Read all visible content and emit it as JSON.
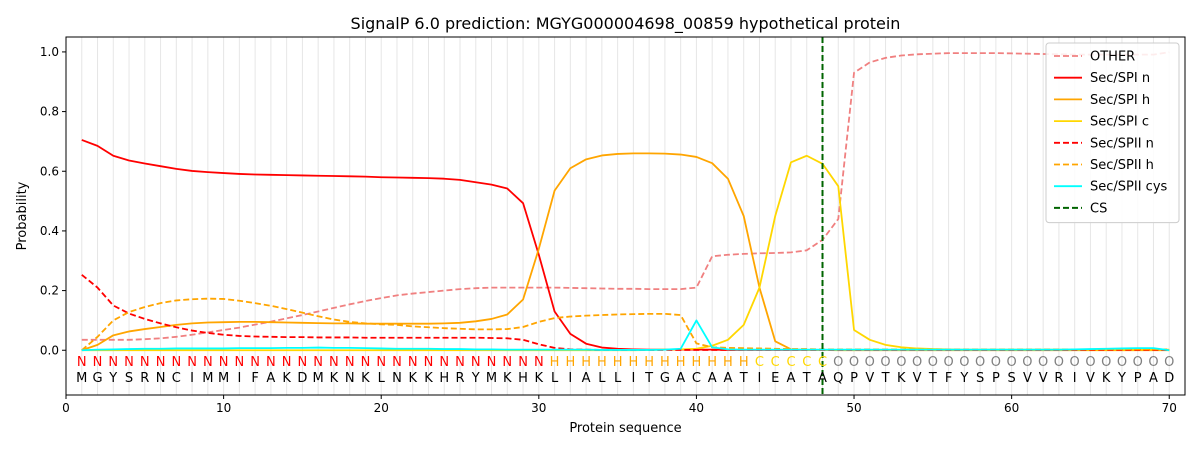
{
  "chart_data": {
    "type": "line",
    "title": "SignalP 6.0 prediction: MGYG000004698_00859 hypothetical protein",
    "xlabel": "Protein sequence",
    "ylabel": "Probability",
    "xlim": [
      0,
      71
    ],
    "ylim": [
      -0.15,
      1.05
    ],
    "x_ticks": [
      0,
      10,
      20,
      30,
      40,
      50,
      60,
      70
    ],
    "y_ticks": [
      0.0,
      0.2,
      0.4,
      0.6,
      0.8,
      1.0
    ],
    "x_tick_labels": [
      "0",
      "10",
      "20",
      "30",
      "40",
      "50",
      "60",
      "70"
    ],
    "y_tick_labels": [
      "0.0",
      "0.2",
      "0.4",
      "0.6",
      "0.8",
      "1.0"
    ],
    "legend_position": "top-right",
    "vertical_grid": true,
    "sequence": [
      "M",
      "G",
      "Y",
      "S",
      "R",
      "N",
      "C",
      "I",
      "M",
      "M",
      "I",
      "F",
      "A",
      "K",
      "D",
      "M",
      "K",
      "N",
      "K",
      "L",
      "N",
      "K",
      "K",
      "H",
      "R",
      "Y",
      "M",
      "K",
      "H",
      "K",
      "L",
      "I",
      "A",
      "L",
      "L",
      "I",
      "T",
      "G",
      "A",
      "C",
      "A",
      "A",
      "T",
      "I",
      "E",
      "A",
      "T",
      "A",
      "Q",
      "P",
      "V",
      "T",
      "K",
      "V",
      "T",
      "F",
      "Y",
      "S",
      "P",
      "S",
      "V",
      "V",
      "R",
      "I",
      "V",
      "K",
      "Y",
      "P",
      "A",
      "D"
    ],
    "labels": [
      "N",
      "N",
      "N",
      "N",
      "N",
      "N",
      "N",
      "N",
      "N",
      "N",
      "N",
      "N",
      "N",
      "N",
      "N",
      "N",
      "N",
      "N",
      "N",
      "N",
      "N",
      "N",
      "N",
      "N",
      "N",
      "N",
      "N",
      "N",
      "N",
      "N",
      "H",
      "H",
      "H",
      "H",
      "H",
      "H",
      "H",
      "H",
      "H",
      "H",
      "H",
      "H",
      "H",
      "C",
      "C",
      "C",
      "C",
      "C",
      "O",
      "O",
      "O",
      "O",
      "O",
      "O",
      "O",
      "O",
      "O",
      "O",
      "O",
      "O",
      "O",
      "O",
      "O",
      "O",
      "O",
      "O",
      "O",
      "O",
      "O",
      "O"
    ],
    "label_colors": {
      "N": "#ff0000",
      "H": "#ffa500",
      "C": "#ffd700",
      "O": "#808080"
    },
    "cs_position": 48,
    "series": [
      {
        "name": "OTHER",
        "color": "#f08080",
        "dash": "dashed",
        "values": [
          0.035,
          0.035,
          0.035,
          0.035,
          0.037,
          0.04,
          0.045,
          0.052,
          0.06,
          0.068,
          0.076,
          0.086,
          0.096,
          0.107,
          0.118,
          0.13,
          0.142,
          0.154,
          0.165,
          0.175,
          0.184,
          0.19,
          0.195,
          0.2,
          0.205,
          0.208,
          0.21,
          0.21,
          0.21,
          0.21,
          0.21,
          0.209,
          0.208,
          0.207,
          0.206,
          0.206,
          0.205,
          0.205,
          0.205,
          0.21,
          0.315,
          0.32,
          0.323,
          0.325,
          0.326,
          0.328,
          0.335,
          0.37,
          0.44,
          0.93,
          0.965,
          0.98,
          0.988,
          0.992,
          0.994,
          0.996,
          0.996,
          0.996,
          0.996,
          0.995,
          0.994,
          0.993,
          0.992,
          0.991,
          0.991,
          0.991,
          0.991,
          0.991,
          0.991,
          0.999
        ]
      },
      {
        "name": "Sec/SPI n",
        "color": "#ff0000",
        "dash": "solid",
        "values": [
          0.705,
          0.685,
          0.652,
          0.636,
          0.626,
          0.617,
          0.608,
          0.601,
          0.597,
          0.594,
          0.591,
          0.589,
          0.588,
          0.587,
          0.586,
          0.585,
          0.584,
          0.583,
          0.582,
          0.58,
          0.579,
          0.578,
          0.577,
          0.575,
          0.571,
          0.563,
          0.555,
          0.542,
          0.493,
          0.32,
          0.13,
          0.055,
          0.022,
          0.009,
          0.005,
          0.003,
          0.002,
          0.002,
          0.002,
          0.002,
          0.002,
          0.001,
          0.001,
          0.001,
          0.001,
          0.001,
          0.001,
          0.001,
          0.001,
          0.001,
          0.001,
          0.001,
          0.001,
          0.001,
          0.001,
          0.001,
          0.001,
          0.001,
          0.001,
          0.001,
          0.001,
          0.001,
          0.001,
          0.001,
          0.001,
          0.001,
          0.001,
          0.001,
          0.001,
          0.001
        ]
      },
      {
        "name": "Sec/SPI h",
        "color": "#ffa500",
        "dash": "solid",
        "values": [
          0.0,
          0.018,
          0.05,
          0.063,
          0.071,
          0.078,
          0.085,
          0.09,
          0.093,
          0.094,
          0.095,
          0.095,
          0.094,
          0.093,
          0.092,
          0.091,
          0.09,
          0.09,
          0.089,
          0.089,
          0.089,
          0.089,
          0.089,
          0.09,
          0.092,
          0.097,
          0.105,
          0.12,
          0.17,
          0.34,
          0.535,
          0.61,
          0.64,
          0.653,
          0.658,
          0.66,
          0.66,
          0.659,
          0.656,
          0.648,
          0.627,
          0.575,
          0.45,
          0.21,
          0.03,
          0.003,
          0.001,
          0.001,
          0.0,
          0.0,
          0.0,
          0.0,
          0.0,
          0.0,
          0.0,
          0.0,
          0.0,
          0.0,
          0.0,
          0.0,
          0.0,
          0.0,
          0.0,
          0.0,
          0.0,
          0.0,
          0.0,
          0.0,
          0.0,
          0.0
        ]
      },
      {
        "name": "Sec/SPI c",
        "color": "#ffd700",
        "dash": "solid",
        "values": [
          0.0,
          0.0,
          0.0,
          0.0,
          0.0,
          0.0,
          0.0,
          0.0,
          0.0,
          0.0,
          0.0,
          0.0,
          0.0,
          0.0,
          0.0,
          0.0,
          0.0,
          0.0,
          0.0,
          0.0,
          0.0,
          0.0,
          0.0,
          0.0,
          0.0,
          0.0,
          0.0,
          0.0,
          0.0,
          0.0,
          0.0,
          0.0,
          0.0,
          0.0,
          0.0,
          0.0,
          0.001,
          0.002,
          0.003,
          0.005,
          0.015,
          0.035,
          0.085,
          0.21,
          0.45,
          0.63,
          0.652,
          0.625,
          0.55,
          0.068,
          0.035,
          0.018,
          0.01,
          0.006,
          0.004,
          0.003,
          0.002,
          0.002,
          0.002,
          0.002,
          0.002,
          0.002,
          0.002,
          0.002,
          0.002,
          0.002,
          0.002,
          0.002,
          0.002,
          0.002
        ]
      },
      {
        "name": "Sec/SPII n",
        "color": "#ff0000",
        "dash": "dashed",
        "values": [
          0.253,
          0.21,
          0.15,
          0.123,
          0.105,
          0.09,
          0.077,
          0.066,
          0.058,
          0.052,
          0.048,
          0.046,
          0.045,
          0.044,
          0.044,
          0.043,
          0.043,
          0.043,
          0.042,
          0.042,
          0.042,
          0.042,
          0.042,
          0.042,
          0.042,
          0.042,
          0.041,
          0.04,
          0.035,
          0.02,
          0.008,
          0.003,
          0.002,
          0.001,
          0.001,
          0.001,
          0.001,
          0.001,
          0.001,
          0.001,
          0.001,
          0.001,
          0.001,
          0.001,
          0.001,
          0.001,
          0.001,
          0.001,
          0.001,
          0.001,
          0.001,
          0.001,
          0.001,
          0.001,
          0.001,
          0.001,
          0.001,
          0.001,
          0.001,
          0.001,
          0.001,
          0.001,
          0.001,
          0.001,
          0.001,
          0.001,
          0.001,
          0.001,
          0.001,
          0.001
        ]
      },
      {
        "name": "Sec/SPII h",
        "color": "#ffa500",
        "dash": "dashed",
        "values": [
          0.0,
          0.045,
          0.1,
          0.128,
          0.145,
          0.158,
          0.167,
          0.171,
          0.173,
          0.172,
          0.166,
          0.158,
          0.149,
          0.138,
          0.126,
          0.114,
          0.103,
          0.095,
          0.09,
          0.087,
          0.085,
          0.08,
          0.077,
          0.074,
          0.072,
          0.07,
          0.07,
          0.071,
          0.078,
          0.095,
          0.108,
          0.113,
          0.116,
          0.118,
          0.12,
          0.121,
          0.122,
          0.122,
          0.118,
          0.023,
          0.01,
          0.008,
          0.007,
          0.006,
          0.005,
          0.004,
          0.004,
          0.003,
          0.003,
          0.003,
          0.003,
          0.003,
          0.003,
          0.003,
          0.003,
          0.003,
          0.003,
          0.003,
          0.003,
          0.003,
          0.003,
          0.003,
          0.003,
          0.003,
          0.003,
          0.003,
          0.003,
          0.003,
          0.003,
          0.003
        ]
      },
      {
        "name": "Sec/SPII cys",
        "color": "#00ffff",
        "dash": "solid",
        "values": [
          0.0,
          0.002,
          0.003,
          0.004,
          0.005,
          0.005,
          0.006,
          0.006,
          0.006,
          0.006,
          0.007,
          0.007,
          0.007,
          0.008,
          0.008,
          0.009,
          0.008,
          0.008,
          0.007,
          0.006,
          0.005,
          0.005,
          0.005,
          0.004,
          0.004,
          0.003,
          0.003,
          0.002,
          0.002,
          0.002,
          0.002,
          0.002,
          0.002,
          0.001,
          0.001,
          0.001,
          0.001,
          0.002,
          0.005,
          0.1,
          0.01,
          0.003,
          0.002,
          0.002,
          0.002,
          0.002,
          0.002,
          0.002,
          0.002,
          0.002,
          0.002,
          0.002,
          0.002,
          0.002,
          0.002,
          0.002,
          0.002,
          0.002,
          0.002,
          0.002,
          0.002,
          0.002,
          0.002,
          0.003,
          0.004,
          0.005,
          0.006,
          0.007,
          0.007,
          0.0
        ]
      },
      {
        "name": "CS",
        "color": "#006400",
        "dash": "dashed",
        "type": "vline",
        "x": 48
      }
    ]
  }
}
